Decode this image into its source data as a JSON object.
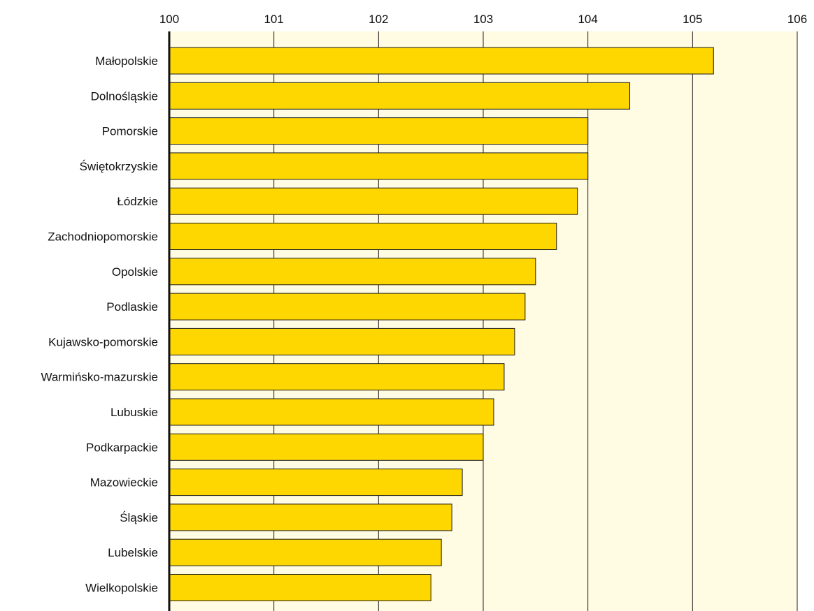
{
  "chart_data": {
    "type": "bar",
    "orientation": "horizontal",
    "categories": [
      "Małopolskie",
      "Dolnośląskie",
      "Pomorskie",
      "Świętokrzyskie",
      "Łódzkie",
      "Zachodniopomorskie",
      "Opolskie",
      "Podlaskie",
      "Kujawsko-pomorskie",
      "Warmińsko-mazurskie",
      "Lubuskie",
      "Podkarpackie",
      "Mazowieckie",
      "Śląskie",
      "Lubelskie",
      "Wielkopolskie"
    ],
    "values": [
      105.2,
      104.4,
      104.0,
      104.0,
      103.9,
      103.7,
      103.5,
      103.4,
      103.3,
      103.2,
      103.1,
      103.0,
      102.8,
      102.7,
      102.6,
      102.5
    ],
    "xlim": [
      100,
      106
    ],
    "xticks": [
      "100",
      "101",
      "102",
      "103",
      "104",
      "105",
      "106"
    ],
    "xaxis_position": "top",
    "grid": true,
    "title": "",
    "xlabel": "",
    "ylabel": ""
  },
  "colors": {
    "bar_fill": "#FFD700",
    "bar_stroke": "#1a1a1a",
    "plot_background": "#FFFCE3",
    "grid_line": "#222222",
    "axis_line": "#111111"
  }
}
